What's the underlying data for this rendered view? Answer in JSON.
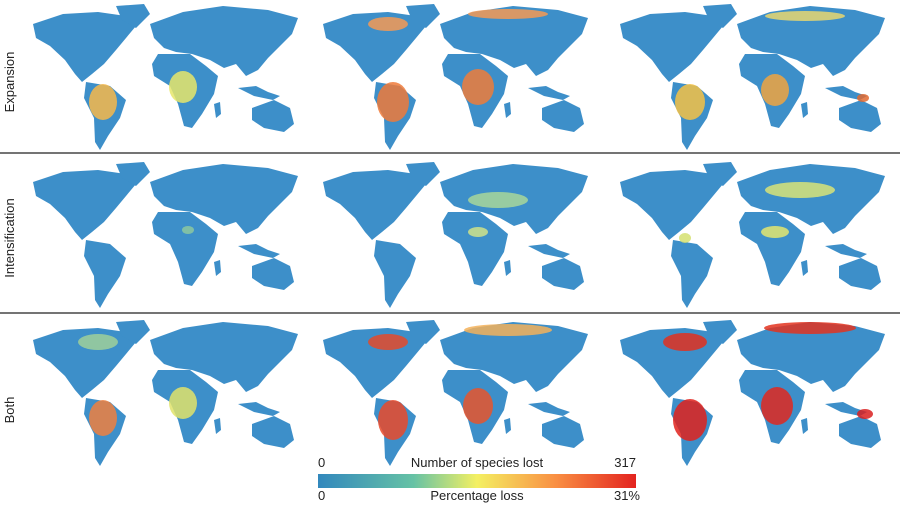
{
  "rows": [
    {
      "label": "Expansion"
    },
    {
      "label": "Intensification"
    },
    {
      "label": "Both"
    }
  ],
  "colorbar": {
    "top": {
      "min": "0",
      "title": "Number of species lost",
      "max": "317"
    },
    "bottom": {
      "min": "0",
      "title": "Percentage loss",
      "max": "31%"
    }
  }
}
